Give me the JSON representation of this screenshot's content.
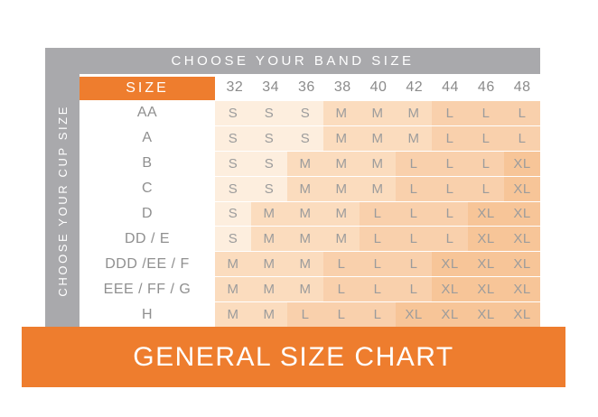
{
  "chart_data": {
    "type": "table",
    "title": "GENERAL SIZE CHART",
    "column_header_title": "CHOOSE YOUR BAND SIZE",
    "row_header_title": "CHOOSE YOUR CUP SIZE",
    "corner_label": "SIZE",
    "columns": [
      "32",
      "34",
      "36",
      "38",
      "40",
      "42",
      "44",
      "46",
      "48"
    ],
    "rows": [
      {
        "cup": "AA",
        "values": [
          "S",
          "S",
          "S",
          "M",
          "M",
          "M",
          "L",
          "L",
          "L"
        ]
      },
      {
        "cup": "A",
        "values": [
          "S",
          "S",
          "S",
          "M",
          "M",
          "M",
          "L",
          "L",
          "L"
        ]
      },
      {
        "cup": "B",
        "values": [
          "S",
          "S",
          "M",
          "M",
          "M",
          "L",
          "L",
          "L",
          "XL"
        ]
      },
      {
        "cup": "C",
        "values": [
          "S",
          "S",
          "M",
          "M",
          "M",
          "L",
          "L",
          "L",
          "XL"
        ]
      },
      {
        "cup": "D",
        "values": [
          "S",
          "M",
          "M",
          "M",
          "L",
          "L",
          "L",
          "XL",
          "XL"
        ]
      },
      {
        "cup": "DD / E",
        "values": [
          "S",
          "M",
          "M",
          "M",
          "L",
          "L",
          "L",
          "XL",
          "XL"
        ]
      },
      {
        "cup": "DDD /EE / F",
        "values": [
          "M",
          "M",
          "M",
          "L",
          "L",
          "L",
          "XL",
          "XL",
          "XL"
        ]
      },
      {
        "cup": "EEE / FF / G",
        "values": [
          "M",
          "M",
          "M",
          "L",
          "L",
          "L",
          "XL",
          "XL",
          "XL"
        ]
      },
      {
        "cup": "H",
        "values": [
          "M",
          "M",
          "L",
          "L",
          "L",
          "XL",
          "XL",
          "XL",
          "XL"
        ]
      }
    ],
    "layout_hints": {
      "legend": "off",
      "grid": "off",
      "column_header_position": "top",
      "row_header_position": "left"
    }
  },
  "colors": {
    "orange": "#ee7d2e",
    "gray_bar": "#a9a9ac",
    "band_number_text": "#8b8b8b",
    "cup_label_text": "#8f8f8f",
    "cell_text": "#9c9c9c",
    "size_fills": {
      "S": "#fdeede",
      "M": "#fbdcbe",
      "L": "#f9d0ac",
      "XL": "#f7c598"
    }
  }
}
